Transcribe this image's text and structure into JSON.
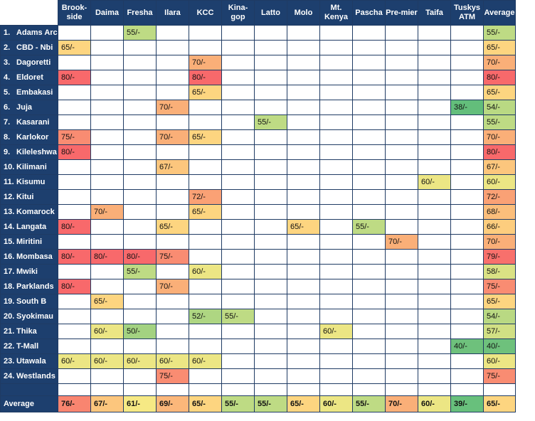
{
  "columns": [
    "Brook-side",
    "Daima",
    "Fresha",
    "Ilara",
    "KCC",
    "Kina-gop",
    "Latto",
    "Molo",
    "Mt. Kenya",
    "Pascha",
    "Pre-mier",
    "Taifa",
    "Tuskys ATM",
    "Average"
  ],
  "rows": [
    {
      "num": "1.",
      "name": "Adams Arc",
      "cells": [
        "",
        "",
        "55/-",
        "",
        "",
        "",
        "",
        "",
        "",
        "",
        "",
        "",
        "",
        "55/-"
      ]
    },
    {
      "num": "2.",
      "name": "CBD - Nbi",
      "cells": [
        "65/-",
        "",
        "",
        "",
        "",
        "",
        "",
        "",
        "",
        "",
        "",
        "",
        "",
        "65/-"
      ]
    },
    {
      "num": "3.",
      "name": "Dagoretti",
      "cells": [
        "",
        "",
        "",
        "",
        "70/-",
        "",
        "",
        "",
        "",
        "",
        "",
        "",
        "",
        "70/-"
      ]
    },
    {
      "num": "4.",
      "name": "Eldoret",
      "cells": [
        "80/-",
        "",
        "",
        "",
        "80/-",
        "",
        "",
        "",
        "",
        "",
        "",
        "",
        "",
        "80/-"
      ]
    },
    {
      "num": "5.",
      "name": "Embakasi",
      "cells": [
        "",
        "",
        "",
        "",
        "65/-",
        "",
        "",
        "",
        "",
        "",
        "",
        "",
        "",
        "65/-"
      ]
    },
    {
      "num": "6.",
      "name": "Juja",
      "cells": [
        "",
        "",
        "",
        "70/-",
        "",
        "",
        "",
        "",
        "",
        "",
        "",
        "",
        "38/-",
        "54/-"
      ]
    },
    {
      "num": "7.",
      "name": "Kasarani",
      "cells": [
        "",
        "",
        "",
        "",
        "",
        "",
        "55/-",
        "",
        "",
        "",
        "",
        "",
        "",
        "55/-"
      ]
    },
    {
      "num": "8.",
      "name": "Karlokor",
      "cells": [
        "75/-",
        "",
        "",
        "70/-",
        "65/-",
        "",
        "",
        "",
        "",
        "",
        "",
        "",
        "",
        "70/-"
      ]
    },
    {
      "num": "9.",
      "name": "Kileleshwa",
      "cells": [
        "80/-",
        "",
        "",
        "",
        "",
        "",
        "",
        "",
        "",
        "",
        "",
        "",
        "",
        "80/-"
      ]
    },
    {
      "num": "10.",
      "name": "Kilimani",
      "cells": [
        "",
        "",
        "",
        "67/-",
        "",
        "",
        "",
        "",
        "",
        "",
        "",
        "",
        "",
        "67/-"
      ]
    },
    {
      "num": "11.",
      "name": "Kisumu",
      "cells": [
        "",
        "",
        "",
        "",
        "",
        "",
        "",
        "",
        "",
        "",
        "",
        "60/-",
        "",
        "60/-"
      ]
    },
    {
      "num": "12.",
      "name": "Kitui",
      "cells": [
        "",
        "",
        "",
        "",
        "72/-",
        "",
        "",
        "",
        "",
        "",
        "",
        "",
        "",
        "72/-"
      ]
    },
    {
      "num": "13.",
      "name": "Komarock",
      "cells": [
        "",
        "70/-",
        "",
        "",
        "65/-",
        "",
        "",
        "",
        "",
        "",
        "",
        "",
        "",
        "68/-"
      ]
    },
    {
      "num": "14.",
      "name": "Langata",
      "cells": [
        "80/-",
        "",
        "",
        "65/-",
        "",
        "",
        "",
        "65/-",
        "",
        "55/-",
        "",
        "",
        "",
        "66/-"
      ]
    },
    {
      "num": "15.",
      "name": "Miritini",
      "cells": [
        "",
        "",
        "",
        "",
        "",
        "",
        "",
        "",
        "",
        "",
        "70/-",
        "",
        "",
        "70/-"
      ]
    },
    {
      "num": "16.",
      "name": "Mombasa",
      "cells": [
        "80/-",
        "80/-",
        "80/-",
        "75/-",
        "",
        "",
        "",
        "",
        "",
        "",
        "",
        "",
        "",
        "79/-"
      ]
    },
    {
      "num": "17.",
      "name": "Mwiki",
      "cells": [
        "",
        "",
        "55/-",
        "",
        "60/-",
        "",
        "",
        "",
        "",
        "",
        "",
        "",
        "",
        "58/-"
      ]
    },
    {
      "num": "18.",
      "name": "Parklands",
      "cells": [
        "80/-",
        "",
        "",
        "70/-",
        "",
        "",
        "",
        "",
        "",
        "",
        "",
        "",
        "",
        "75/-"
      ]
    },
    {
      "num": "19.",
      "name": "South B",
      "cells": [
        "",
        "65/-",
        "",
        "",
        "",
        "",
        "",
        "",
        "",
        "",
        "",
        "",
        "",
        "65/-"
      ]
    },
    {
      "num": "20.",
      "name": "Syokimau",
      "cells": [
        "",
        "",
        "",
        "",
        "52/-",
        "55/-",
        "",
        "",
        "",
        "",
        "",
        "",
        "",
        "54/-"
      ]
    },
    {
      "num": "21.",
      "name": "Thika",
      "cells": [
        "",
        "60/-",
        "50/-",
        "",
        "",
        "",
        "",
        "",
        "60/-",
        "",
        "",
        "",
        "",
        "57/-"
      ]
    },
    {
      "num": "22.",
      "name": "T-Mall",
      "cells": [
        "",
        "",
        "",
        "",
        "",
        "",
        "",
        "",
        "",
        "",
        "",
        "",
        "40/-",
        "40/-"
      ]
    },
    {
      "num": "23.",
      "name": "Utawala",
      "cells": [
        "60/-",
        "60/-",
        "60/-",
        "60/-",
        "60/-",
        "",
        "",
        "",
        "",
        "",
        "",
        "",
        "",
        "60/-"
      ]
    },
    {
      "num": "24.",
      "name": "Westlands",
      "cells": [
        "",
        "",
        "",
        "75/-",
        "",
        "",
        "",
        "",
        "",
        "",
        "",
        "",
        "",
        "75/-"
      ]
    }
  ],
  "average_row": {
    "label": "Average",
    "cells": [
      "76/-",
      "67/-",
      "61/-",
      "69/-",
      "65/-",
      "55/-",
      "55/-",
      "65/-",
      "60/-",
      "55/-",
      "70/-",
      "60/-",
      "39/-",
      "65/-"
    ]
  }
}
